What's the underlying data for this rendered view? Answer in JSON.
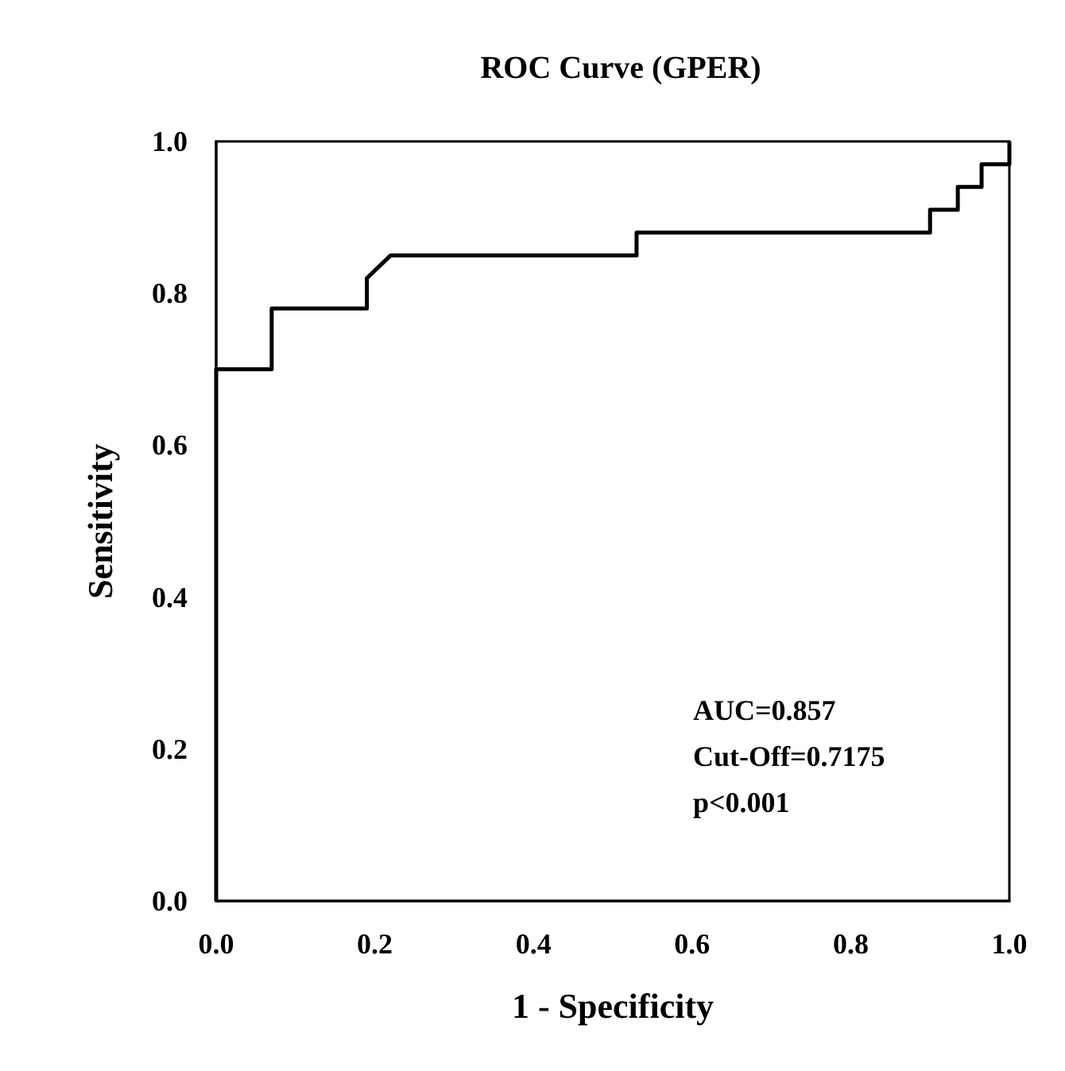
{
  "chart_data": {
    "type": "line",
    "title": "ROC Curve (GPER)",
    "xlabel": "1 - Specificity",
    "ylabel": "Sensitivity",
    "x": [
      0,
      0,
      0.07,
      0.07,
      0.19,
      0.19,
      0.22,
      0.53,
      0.53,
      0.9,
      0.9,
      0.935,
      0.935,
      0.965,
      0.965,
      1,
      1
    ],
    "series": [
      {
        "color": "#000000",
        "values": [
          0,
          0.7,
          0.7,
          0.78,
          0.78,
          0.82,
          0.85,
          0.85,
          0.88,
          0.88,
          0.91,
          0.91,
          0.94,
          0.94,
          0.97,
          0.97,
          1
        ]
      }
    ],
    "xlim": [
      0,
      1
    ],
    "ylim": [
      0,
      1
    ],
    "xticks": [
      {
        "value": 0,
        "label": "0.0"
      },
      {
        "value": 0.2,
        "label": "0.2"
      },
      {
        "value": 0.4,
        "label": "0.4"
      },
      {
        "value": 0.6,
        "label": "0.6"
      },
      {
        "value": 0.8,
        "label": "0.8"
      },
      {
        "value": 1,
        "label": "1.0"
      }
    ],
    "yticks": [
      {
        "value": 0,
        "label": "0.0"
      },
      {
        "value": 0.2,
        "label": "0.2"
      },
      {
        "value": 0.4,
        "label": "0.4"
      },
      {
        "value": 0.6,
        "label": "0.6"
      },
      {
        "value": 0.8,
        "label": "0.8"
      },
      {
        "value": 1,
        "label": "1.0"
      }
    ],
    "annotations": [
      "AUC=0.857",
      "Cut-Off=0.7175",
      "p<0.001"
    ],
    "grid": false,
    "marker": "none",
    "line_style": "solid"
  }
}
